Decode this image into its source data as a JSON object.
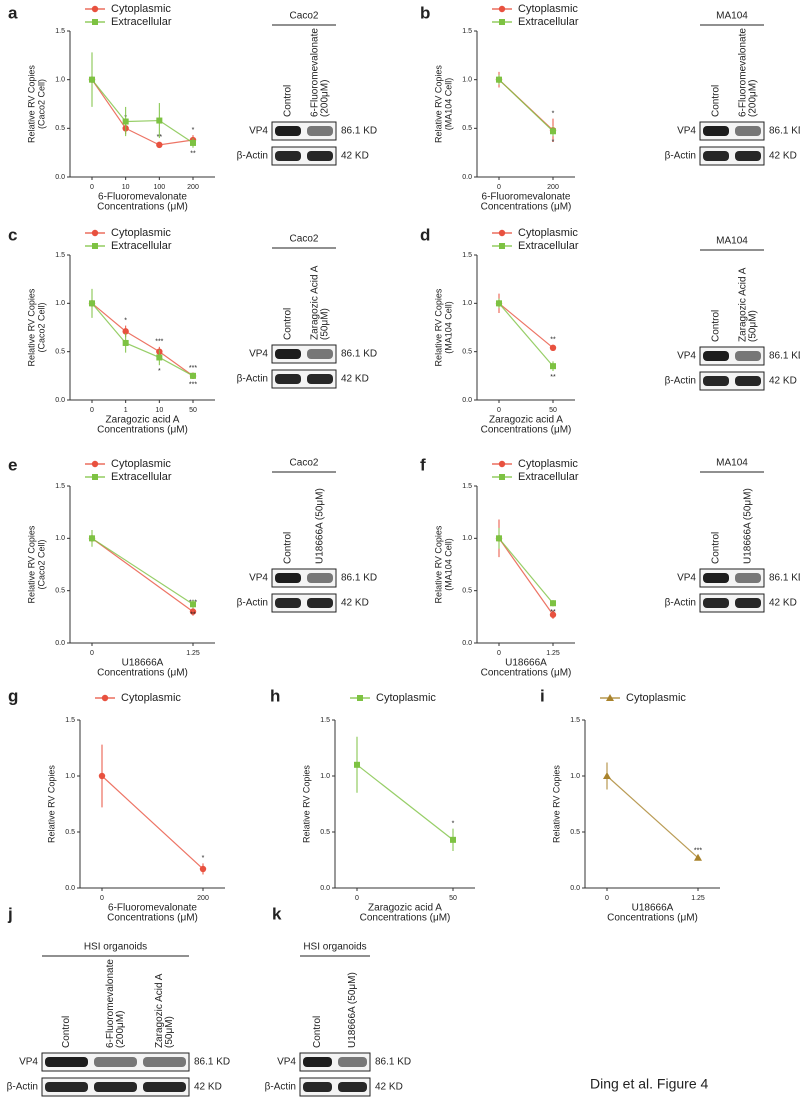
{
  "chart_data": [
    {
      "type": "line",
      "panel": "a",
      "ylabel": [
        "Relative RV Copies",
        "(Caco2 Cell)"
      ],
      "xlabel": [
        "6-Fluoromevalonate",
        "Concentrations (μM)"
      ],
      "categories": [
        "0",
        "10",
        "100",
        "200"
      ],
      "ylim": [
        0,
        1.5
      ],
      "yticks": [
        {
          "value": 0,
          "label": "0.0"
        },
        0.5,
        {
          "value": 1,
          "label": "1.0"
        },
        1.5
      ],
      "series": [
        {
          "name": "Cytoplasmic",
          "color": "#e8513f",
          "marker": "circle",
          "values": [
            1.0,
            0.5,
            0.33,
            0.38
          ],
          "errors": [
            0.12,
            0.06,
            0.03,
            0.05
          ],
          "stars": [
            null,
            "*",
            "**",
            "*"
          ]
        },
        {
          "name": "Extracellular",
          "color": "#7dc242",
          "marker": "square",
          "values": [
            1.0,
            0.57,
            0.58,
            0.35
          ],
          "errors": [
            0.28,
            0.15,
            0.18,
            0.05
          ],
          "stars": [
            null,
            null,
            null,
            "**"
          ]
        }
      ]
    },
    {
      "type": "line",
      "panel": "b",
      "ylabel": [
        "Relative RV Copies",
        "(MA104 Cell)"
      ],
      "xlabel": [
        "6-Fluoromevalonate",
        "Concentrations (μM)"
      ],
      "categories": [
        "0",
        "200"
      ],
      "ylim": [
        0,
        1.5
      ],
      "yticks": [
        {
          "value": 0,
          "label": "0.0"
        },
        0.5,
        {
          "value": 1,
          "label": "1.0"
        },
        1.5
      ],
      "series": [
        {
          "name": "Cytoplasmic",
          "color": "#e8513f",
          "marker": "circle",
          "values": [
            1.0,
            0.48
          ],
          "errors": [
            0.08,
            0.12
          ],
          "stars": [
            null,
            "*"
          ]
        },
        {
          "name": "Extracellular",
          "color": "#7dc242",
          "marker": "square",
          "values": [
            1.0,
            0.47
          ],
          "errors": [
            0.05,
            0.05
          ],
          "stars": [
            null,
            "*"
          ]
        }
      ]
    },
    {
      "type": "line",
      "panel": "c",
      "ylabel": [
        "Relative RV Copies",
        "(Caco2 Cell)"
      ],
      "xlabel": [
        "Zaragozic acid A",
        "Concentrations (μM)"
      ],
      "categories": [
        "0",
        "1",
        "10",
        "50"
      ],
      "ylim": [
        0,
        1.5
      ],
      "yticks": [
        {
          "value": 0,
          "label": "0.0"
        },
        0.5,
        {
          "value": 1,
          "label": "1.0"
        },
        1.5
      ],
      "series": [
        {
          "name": "Cytoplasmic",
          "color": "#e8513f",
          "marker": "circle",
          "values": [
            1.0,
            0.71,
            0.5,
            0.25
          ],
          "errors": [
            0.1,
            0.06,
            0.05,
            0.03
          ],
          "stars": [
            null,
            "*",
            "***",
            "***"
          ]
        },
        {
          "name": "Extracellular",
          "color": "#7dc242",
          "marker": "square",
          "values": [
            1.0,
            0.59,
            0.44,
            0.25
          ],
          "errors": [
            0.15,
            0.1,
            0.08,
            0.03
          ],
          "stars": [
            null,
            null,
            "*",
            "***"
          ]
        }
      ]
    },
    {
      "type": "line",
      "panel": "d",
      "ylabel": [
        "Relative RV Copies",
        "(MA104 Cell)"
      ],
      "xlabel": [
        "Zaragozic acid A",
        "Concentrations (μM)"
      ],
      "categories": [
        "0",
        "50"
      ],
      "ylim": [
        0,
        1.5
      ],
      "yticks": [
        {
          "value": 0,
          "label": "0.0"
        },
        0.5,
        {
          "value": 1,
          "label": "1.0"
        },
        1.5
      ],
      "series": [
        {
          "name": "Cytoplasmic",
          "color": "#e8513f",
          "marker": "circle",
          "values": [
            1.0,
            0.54
          ],
          "errors": [
            0.1,
            0.03
          ],
          "stars": [
            null,
            "**"
          ]
        },
        {
          "name": "Extracellular",
          "color": "#7dc242",
          "marker": "square",
          "values": [
            1.0,
            0.35
          ],
          "errors": [
            0.05,
            0.05
          ],
          "stars": [
            null,
            "**"
          ]
        }
      ]
    },
    {
      "type": "line",
      "panel": "e",
      "ylabel": [
        "Relative RV Copies",
        "(Caco2 Cell)"
      ],
      "xlabel": [
        "U18666A",
        "Concentrations (μM)"
      ],
      "categories": [
        "0",
        "1.25"
      ],
      "ylim": [
        0,
        1.5
      ],
      "yticks": [
        {
          "value": 0,
          "label": "0.0"
        },
        0.5,
        {
          "value": 1,
          "label": "1.0"
        },
        1.5
      ],
      "series": [
        {
          "name": "Cytoplasmic",
          "color": "#e8513f",
          "marker": "circle",
          "values": [
            1.0,
            0.3
          ],
          "errors": [
            0.05,
            0.04
          ],
          "stars": [
            null,
            "***"
          ]
        },
        {
          "name": "Extracellular",
          "color": "#7dc242",
          "marker": "square",
          "values": [
            1.0,
            0.37
          ],
          "errors": [
            0.08,
            0.04
          ],
          "stars": [
            null,
            "**"
          ]
        }
      ]
    },
    {
      "type": "line",
      "panel": "f",
      "ylabel": [
        "Relative RV Copies",
        "(MA104 Cell)"
      ],
      "xlabel": [
        "U18666A",
        "Concentrations (μM)"
      ],
      "categories": [
        "0",
        "1.25"
      ],
      "ylim": [
        0,
        1.5
      ],
      "yticks": [
        {
          "value": 0,
          "label": "0.0"
        },
        0.5,
        {
          "value": 1,
          "label": "1.0"
        },
        1.5
      ],
      "series": [
        {
          "name": "Cytoplasmic",
          "color": "#e8513f",
          "marker": "circle",
          "values": [
            1.0,
            0.27
          ],
          "errors": [
            0.18,
            0.04
          ],
          "stars": [
            null,
            "**"
          ]
        },
        {
          "name": "Extracellular",
          "color": "#7dc242",
          "marker": "square",
          "values": [
            1.0,
            0.38
          ],
          "errors": [
            0.1,
            0.03
          ],
          "stars": [
            null,
            "**"
          ]
        }
      ]
    },
    {
      "type": "line",
      "panel": "g",
      "ylabel": [
        "Relative RV Copies"
      ],
      "xlabel": [
        "6-Fluoromevalonate",
        "Concentrations (μM)"
      ],
      "categories": [
        "0",
        "200"
      ],
      "ylim": [
        0,
        1.5
      ],
      "yticks": [
        {
          "value": 0,
          "label": "0.0"
        },
        0.5,
        {
          "value": 1,
          "label": "1.0"
        },
        1.5
      ],
      "series": [
        {
          "name": "Cytoplasmic",
          "color": "#e8513f",
          "marker": "circle",
          "values": [
            1.0,
            0.17
          ],
          "errors": [
            0.28,
            0.05
          ],
          "stars": [
            null,
            "*"
          ]
        }
      ]
    },
    {
      "type": "line",
      "panel": "h",
      "ylabel": [
        "Relative RV Copies"
      ],
      "xlabel": [
        "Zaragozic acid A",
        "Concentrations (μM)"
      ],
      "categories": [
        "0",
        "50"
      ],
      "ylim": [
        0,
        1.5
      ],
      "yticks": [
        {
          "value": 0,
          "label": "0.0"
        },
        0.5,
        {
          "value": 1,
          "label": "1.0"
        },
        1.5
      ],
      "series": [
        {
          "name": "Cytoplasmic",
          "color": "#7dc242",
          "marker": "square",
          "values": [
            1.1,
            0.43
          ],
          "errors": [
            0.25,
            0.1
          ],
          "stars": [
            null,
            "*"
          ]
        }
      ]
    },
    {
      "type": "line",
      "panel": "i",
      "ylabel": [
        "Relative RV Copies"
      ],
      "xlabel": [
        "U18666A",
        "Concentrations (μM)"
      ],
      "categories": [
        "0",
        "1.25"
      ],
      "ylim": [
        0,
        1.5
      ],
      "yticks": [
        {
          "value": 0,
          "label": "0.0"
        },
        0.5,
        {
          "value": 1,
          "label": "1.0"
        },
        1.5
      ],
      "series": [
        {
          "name": "Cytoplasmic",
          "color": "#a9832c",
          "marker": "triangle",
          "values": [
            1.0,
            0.27
          ],
          "errors": [
            0.12,
            0.02
          ],
          "stars": [
            null,
            "***"
          ]
        }
      ]
    }
  ],
  "blots": [
    {
      "cell": "Caco2",
      "lanes": [
        [
          "Control"
        ],
        [
          "6-Fluoromevalonate",
          "(200μM)"
        ]
      ],
      "rows": [
        {
          "label": "VP4",
          "kd": "86.1 KD"
        },
        {
          "label": "β-Actin",
          "kd": "42 KD"
        }
      ]
    },
    {
      "cell": "MA104",
      "lanes": [
        [
          "Control"
        ],
        [
          "6-Fluoromevalonate",
          "(200μM)"
        ]
      ],
      "rows": [
        {
          "label": "VP4",
          "kd": "86.1 KD"
        },
        {
          "label": "β-Actin",
          "kd": "42 KD"
        }
      ]
    },
    {
      "cell": "Caco2",
      "lanes": [
        [
          "Control"
        ],
        [
          "Zaragozic Acid A",
          "(50μM)"
        ]
      ],
      "rows": [
        {
          "label": "VP4",
          "kd": "86.1 KD"
        },
        {
          "label": "β-Actin",
          "kd": "42 KD"
        }
      ]
    },
    {
      "cell": "MA104",
      "lanes": [
        [
          "Control"
        ],
        [
          "Zaragozic Acid A",
          "(50μM)"
        ]
      ],
      "rows": [
        {
          "label": "VP4",
          "kd": "86.1 KD"
        },
        {
          "label": "β-Actin",
          "kd": "42 KD"
        }
      ]
    },
    {
      "cell": "Caco2",
      "lanes": [
        [
          "Control"
        ],
        [
          "U18666A (50μM)"
        ]
      ],
      "rows": [
        {
          "label": "VP4",
          "kd": "86.1 KD"
        },
        {
          "label": "β-Actin",
          "kd": "42 KD"
        }
      ]
    },
    {
      "cell": "MA104",
      "lanes": [
        [
          "Control"
        ],
        [
          "U18666A (50μM)"
        ]
      ],
      "rows": [
        {
          "label": "VP4",
          "kd": "86.1 KD"
        },
        {
          "label": "β-Actin",
          "kd": "42 KD"
        }
      ]
    },
    {
      "panel": "j",
      "cell": "HSI organoids",
      "lanes": [
        [
          "Control"
        ],
        [
          "6-Fluoromevalonate",
          "(200μM)"
        ],
        [
          "Zaragozic Acid A",
          "(50μM)"
        ]
      ],
      "rows": [
        {
          "label": "VP4",
          "kd": "86.1 KD"
        },
        {
          "label": "β-Actin",
          "kd": "42 KD"
        }
      ]
    },
    {
      "panel": "k",
      "cell": "HSI organoids",
      "lanes": [
        [
          "Control"
        ],
        [
          "U18666A (50μM)"
        ]
      ],
      "rows": [
        {
          "label": "VP4",
          "kd": "86.1 KD"
        },
        {
          "label": "β-Actin",
          "kd": "42 KD"
        }
      ]
    }
  ],
  "footer": "Ding et al.  Figure 4"
}
